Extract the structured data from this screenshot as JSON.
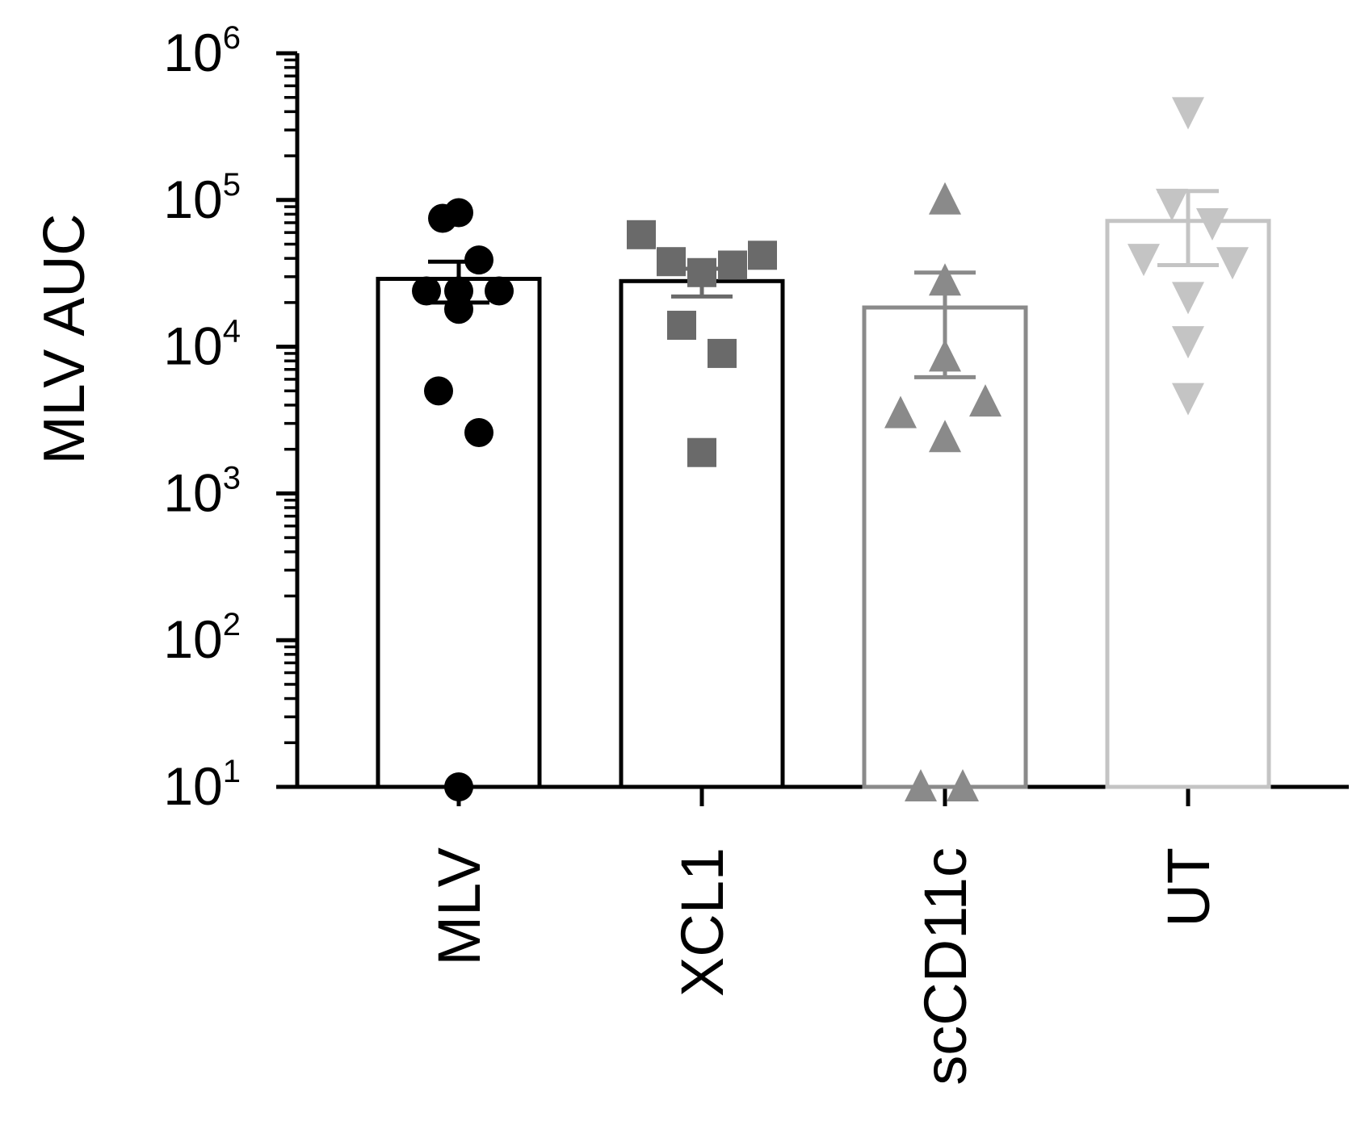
{
  "chart_data": {
    "type": "bar",
    "ylabel": "MLV AUC",
    "xlabel": "",
    "title": "",
    "y_scale": "log",
    "ylim": [
      10,
      1000000
    ],
    "y_ticks": [
      {
        "value": 10,
        "base": "10",
        "exp": "1"
      },
      {
        "value": 100,
        "base": "10",
        "exp": "2"
      },
      {
        "value": 1000,
        "base": "10",
        "exp": "3"
      },
      {
        "value": 10000,
        "base": "10",
        "exp": "4"
      },
      {
        "value": 100000,
        "base": "10",
        "exp": "5"
      },
      {
        "value": 1000000,
        "base": "10",
        "exp": "6"
      }
    ],
    "categories": [
      "MLV",
      "XCL1",
      "scCD11c",
      "UT"
    ],
    "series": [
      {
        "category": "MLV",
        "mean": 29000,
        "error_low": 20000,
        "error_high": 38000,
        "bar_color": "#000000",
        "point_color": "#000000",
        "marker": "circle",
        "points": [
          75000,
          82000,
          39000,
          24000,
          24000,
          18000,
          24000,
          5000,
          2600,
          10
        ]
      },
      {
        "category": "XCL1",
        "mean": 28000,
        "error_low": 22000,
        "error_high": 34000,
        "bar_color": "#000000",
        "point_color": "#6a6a6a",
        "marker": "square",
        "points": [
          58000,
          38000,
          32000,
          36000,
          42000,
          14000,
          9000,
          1900
        ]
      },
      {
        "category": "scCD11c",
        "mean": 18500,
        "error_low": 6200,
        "error_high": 32000,
        "bar_color": "#8a8a8a",
        "point_color": "#8a8a8a",
        "marker": "triangle-up",
        "points": [
          100000,
          28000,
          8500,
          3500,
          4200,
          2400,
          10,
          10
        ]
      },
      {
        "category": "UT",
        "mean": 72000,
        "error_low": 36000,
        "error_high": 115000,
        "bar_color": "#c4c4c4",
        "point_color": "#c4c4c4",
        "marker": "triangle-down",
        "points": [
          400000,
          95000,
          70000,
          40000,
          38000,
          22000,
          11000,
          4500
        ]
      }
    ],
    "grid": false,
    "legend": "none"
  }
}
